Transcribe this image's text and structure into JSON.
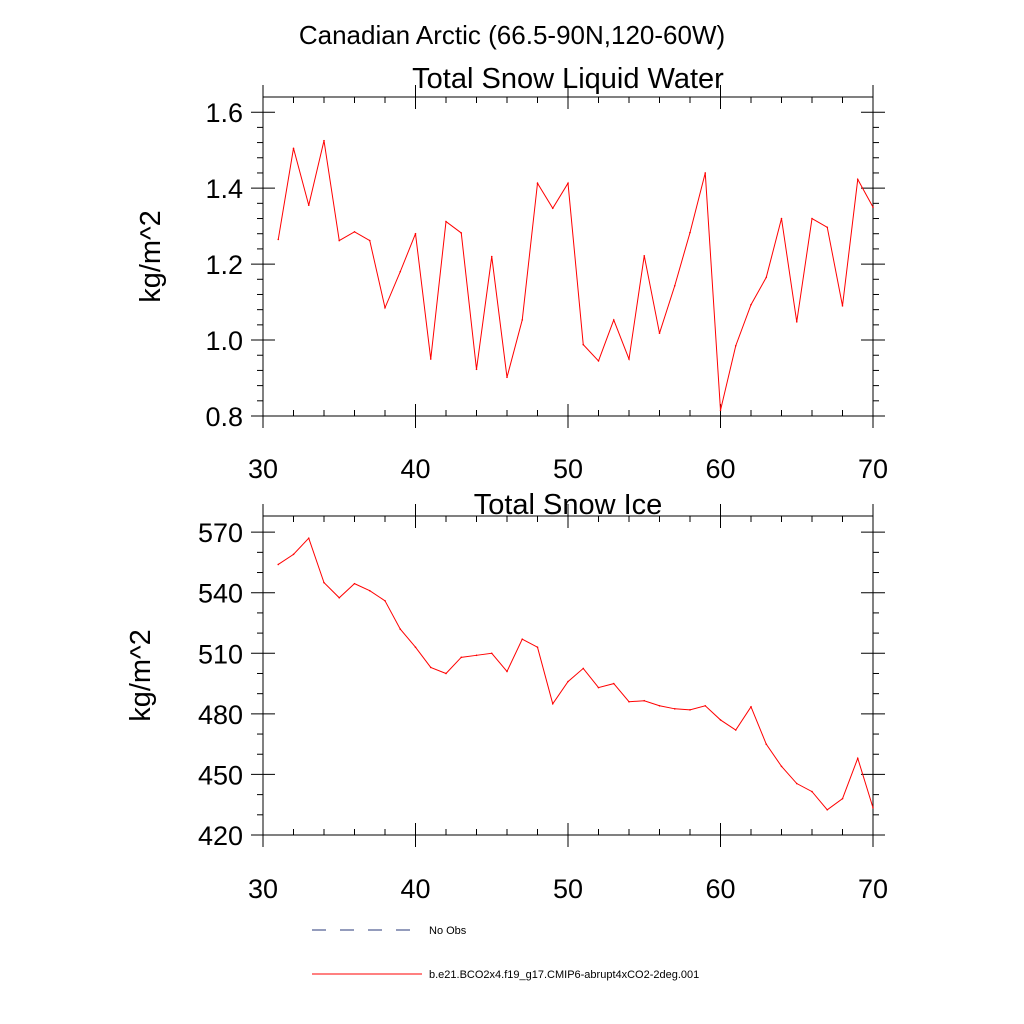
{
  "page_title": "Canadian Arctic (66.5-90N,120-60W)",
  "chart_data": [
    {
      "type": "line",
      "title": "Total Snow Liquid Water",
      "xlabel": "",
      "ylabel": "kg/m^2",
      "xlim": [
        30,
        70
      ],
      "ylim": [
        0.8,
        1.65
      ],
      "xticks": [
        30,
        40,
        50,
        60,
        70
      ],
      "xtick_labels": [
        "30",
        "40",
        "50",
        "60",
        "70"
      ],
      "yticks": [
        0.8,
        1.0,
        1.2,
        1.4,
        1.6
      ],
      "ytick_labels": [
        "0.8",
        "1.0",
        "1.2",
        "1.4",
        "1.6"
      ],
      "grid": false,
      "series": [
        {
          "name": "b.e21.BCO2x4.f19_g17.CMIP6-abrupt4xCO2-2deg.001",
          "color": "#ff0000",
          "x": [
            31,
            32,
            33,
            34,
            35,
            36,
            37,
            38,
            39,
            40,
            41,
            42,
            43,
            44,
            45,
            46,
            47,
            48,
            49,
            50,
            51,
            52,
            53,
            54,
            55,
            56,
            57,
            58,
            59,
            60,
            61,
            62,
            63,
            64,
            65,
            66,
            67,
            68,
            69,
            70
          ],
          "y": [
            1.265,
            1.505,
            1.355,
            1.525,
            1.262,
            1.285,
            1.262,
            1.085,
            1.18,
            1.28,
            0.95,
            1.312,
            1.282,
            0.923,
            1.22,
            0.902,
            1.053,
            1.413,
            1.347,
            1.413,
            0.988,
            0.945,
            1.053,
            0.95,
            1.222,
            1.018,
            1.143,
            1.283,
            1.44,
            0.815,
            0.985,
            1.093,
            1.165,
            1.32,
            1.048,
            1.32,
            1.297,
            1.09,
            1.423,
            1.35
          ]
        }
      ]
    },
    {
      "type": "line",
      "title": "Total Snow Ice",
      "xlabel": "",
      "ylabel": "kg/m^2",
      "xlim": [
        30,
        70
      ],
      "ylim": [
        420,
        570
      ],
      "xticks": [
        30,
        40,
        50,
        60,
        70
      ],
      "xtick_labels": [
        "30",
        "40",
        "50",
        "60",
        "70"
      ],
      "yticks": [
        420,
        450,
        480,
        510,
        540,
        570
      ],
      "ytick_labels": [
        "420",
        "450",
        "480",
        "510",
        "540",
        "570"
      ],
      "grid": false,
      "series": [
        {
          "name": "b.e21.BCO2x4.f19_g17.CMIP6-abrupt4xCO2-2deg.001",
          "color": "#ff0000",
          "x": [
            31,
            32,
            33,
            34,
            35,
            36,
            37,
            38,
            39,
            40,
            41,
            42,
            43,
            44,
            45,
            46,
            47,
            48,
            49,
            50,
            51,
            52,
            53,
            54,
            55,
            56,
            57,
            58,
            59,
            60,
            61,
            62,
            63,
            64,
            65,
            66,
            67,
            68,
            69,
            70
          ],
          "y": [
            554,
            559,
            567,
            545,
            537.5,
            544.5,
            541,
            536,
            522,
            513,
            503,
            500,
            508,
            509,
            510,
            501,
            517,
            513,
            485,
            496,
            502.5,
            493,
            495,
            486,
            486.5,
            484,
            482.5,
            482,
            484,
            477,
            472,
            483.5,
            465,
            454,
            445.5,
            441.5,
            432.5,
            438,
            458,
            433.5
          ]
        }
      ]
    }
  ],
  "legend": {
    "items": [
      {
        "label": "No Obs",
        "color": "#2a3a7a",
        "style": "dashed"
      },
      {
        "label": "b.e21.BCO2x4.f19_g17.CMIP6-abrupt4xCO2-2deg.001",
        "color": "#ff0000",
        "style": "solid"
      }
    ]
  }
}
